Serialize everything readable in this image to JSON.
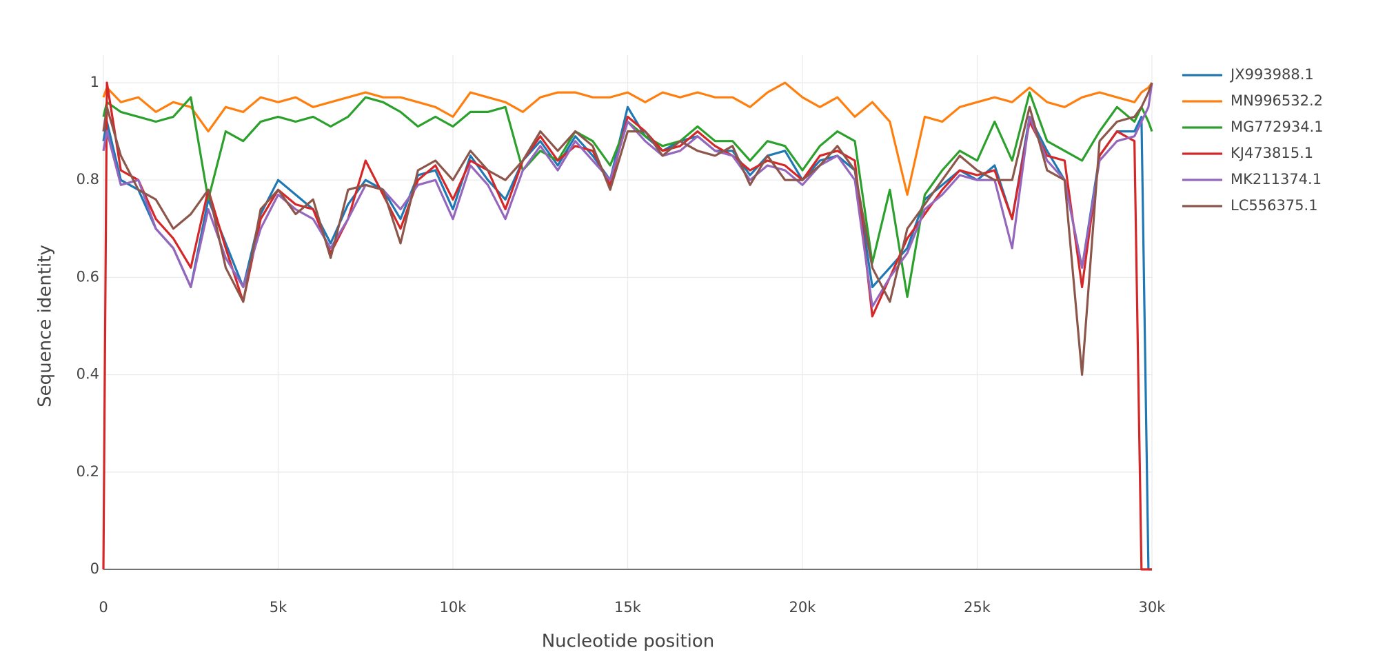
{
  "chart_data": {
    "type": "line",
    "xlabel": "Nucleotide position",
    "ylabel": "Sequence identity",
    "x": [
      0,
      100,
      500,
      1000,
      1500,
      2000,
      2500,
      3000,
      3500,
      4000,
      4500,
      5000,
      5500,
      6000,
      6500,
      7000,
      7500,
      8000,
      8500,
      9000,
      9500,
      10000,
      10500,
      11000,
      11500,
      12000,
      12500,
      13000,
      13500,
      14000,
      14500,
      15000,
      15500,
      16000,
      16500,
      17000,
      17500,
      18000,
      18500,
      19000,
      19500,
      20000,
      20500,
      21000,
      21500,
      22000,
      22500,
      23000,
      23500,
      24000,
      24500,
      25000,
      25500,
      26000,
      26500,
      27000,
      27500,
      28000,
      28500,
      29000,
      29500,
      29700,
      29900,
      30000
    ],
    "series": [
      {
        "name": "JX993988.1",
        "color": "#1f77b4",
        "values": [
          0.88,
          0.92,
          0.8,
          0.78,
          0.7,
          0.66,
          0.58,
          0.76,
          0.67,
          0.58,
          0.73,
          0.8,
          0.77,
          0.74,
          0.67,
          0.75,
          0.8,
          0.78,
          0.72,
          0.81,
          0.82,
          0.74,
          0.85,
          0.8,
          0.76,
          0.84,
          0.88,
          0.83,
          0.89,
          0.85,
          0.8,
          0.95,
          0.89,
          0.86,
          0.88,
          0.89,
          0.86,
          0.86,
          0.81,
          0.85,
          0.86,
          0.8,
          0.84,
          0.85,
          0.82,
          0.58,
          0.62,
          0.66,
          0.76,
          0.79,
          0.82,
          0.8,
          0.83,
          0.72,
          0.93,
          0.86,
          0.8,
          0.62,
          0.85,
          0.9,
          0.9,
          0.93,
          0,
          0
        ]
      },
      {
        "name": "MN996532.2",
        "color": "#ff7f0e",
        "values": [
          0.97,
          0.99,
          0.96,
          0.97,
          0.94,
          0.96,
          0.95,
          0.9,
          0.95,
          0.94,
          0.97,
          0.96,
          0.97,
          0.95,
          0.96,
          0.97,
          0.98,
          0.97,
          0.97,
          0.96,
          0.95,
          0.93,
          0.98,
          0.97,
          0.96,
          0.94,
          0.97,
          0.98,
          0.98,
          0.97,
          0.97,
          0.98,
          0.96,
          0.98,
          0.97,
          0.98,
          0.97,
          0.97,
          0.95,
          0.98,
          1.0,
          0.97,
          0.95,
          0.97,
          0.93,
          0.96,
          0.92,
          0.77,
          0.93,
          0.92,
          0.95,
          0.96,
          0.97,
          0.96,
          0.99,
          0.96,
          0.95,
          0.97,
          0.98,
          0.97,
          0.96,
          0.98,
          0.99,
          1.0
        ]
      },
      {
        "name": "MG772934.1",
        "color": "#2ca02c",
        "values": [
          0.93,
          0.96,
          0.94,
          0.93,
          0.92,
          0.93,
          0.97,
          0.76,
          0.9,
          0.88,
          0.92,
          0.93,
          0.92,
          0.93,
          0.91,
          0.93,
          0.97,
          0.96,
          0.94,
          0.91,
          0.93,
          0.91,
          0.94,
          0.94,
          0.95,
          0.82,
          0.86,
          0.84,
          0.9,
          0.88,
          0.83,
          0.92,
          0.89,
          0.87,
          0.88,
          0.91,
          0.88,
          0.88,
          0.84,
          0.88,
          0.87,
          0.82,
          0.87,
          0.9,
          0.88,
          0.63,
          0.78,
          0.56,
          0.77,
          0.82,
          0.86,
          0.84,
          0.92,
          0.84,
          0.98,
          0.88,
          0.86,
          0.84,
          0.9,
          0.95,
          0.92,
          0.95,
          0.92,
          0.9
        ]
      },
      {
        "name": "KJ473815.1",
        "color": "#d62728",
        "values": [
          0,
          1.0,
          0.82,
          0.8,
          0.72,
          0.68,
          0.62,
          0.78,
          0.66,
          0.55,
          0.72,
          0.78,
          0.75,
          0.74,
          0.65,
          0.72,
          0.84,
          0.77,
          0.7,
          0.8,
          0.83,
          0.76,
          0.84,
          0.82,
          0.74,
          0.84,
          0.89,
          0.84,
          0.87,
          0.86,
          0.79,
          0.93,
          0.9,
          0.86,
          0.87,
          0.9,
          0.87,
          0.85,
          0.82,
          0.84,
          0.83,
          0.8,
          0.85,
          0.86,
          0.84,
          0.52,
          0.6,
          0.68,
          0.73,
          0.78,
          0.82,
          0.81,
          0.82,
          0.72,
          0.92,
          0.85,
          0.84,
          0.58,
          0.85,
          0.9,
          0.88,
          0,
          0,
          0
        ]
      },
      {
        "name": "MK211374.1",
        "color": "#9467bd",
        "values": [
          0.86,
          0.9,
          0.79,
          0.8,
          0.7,
          0.66,
          0.58,
          0.74,
          0.64,
          0.58,
          0.7,
          0.77,
          0.74,
          0.72,
          0.66,
          0.72,
          0.79,
          0.78,
          0.74,
          0.79,
          0.8,
          0.72,
          0.83,
          0.79,
          0.72,
          0.82,
          0.87,
          0.82,
          0.88,
          0.84,
          0.8,
          0.92,
          0.88,
          0.85,
          0.86,
          0.89,
          0.86,
          0.85,
          0.8,
          0.83,
          0.82,
          0.79,
          0.83,
          0.85,
          0.8,
          0.54,
          0.6,
          0.65,
          0.74,
          0.77,
          0.81,
          0.8,
          0.8,
          0.66,
          0.93,
          0.84,
          0.8,
          0.62,
          0.84,
          0.88,
          0.89,
          0.92,
          0.95,
          1.0
        ]
      },
      {
        "name": "LC556375.1",
        "color": "#8c564b",
        "values": [
          0.9,
          0.95,
          0.85,
          0.78,
          0.76,
          0.7,
          0.73,
          0.78,
          0.62,
          0.55,
          0.74,
          0.78,
          0.73,
          0.76,
          0.64,
          0.78,
          0.79,
          0.78,
          0.67,
          0.82,
          0.84,
          0.8,
          0.86,
          0.82,
          0.8,
          0.84,
          0.9,
          0.86,
          0.9,
          0.87,
          0.78,
          0.9,
          0.9,
          0.85,
          0.88,
          0.86,
          0.85,
          0.87,
          0.79,
          0.85,
          0.8,
          0.8,
          0.83,
          0.87,
          0.82,
          0.62,
          0.55,
          0.7,
          0.75,
          0.8,
          0.85,
          0.82,
          0.8,
          0.8,
          0.95,
          0.82,
          0.8,
          0.4,
          0.88,
          0.92,
          0.93,
          0.95,
          0.98,
          1.0
        ]
      }
    ],
    "xlim": [
      0,
      30000
    ],
    "xticks": [
      0,
      {
        "value": 5000,
        "label": "5k"
      },
      {
        "value": 10000,
        "label": "10k"
      },
      {
        "value": 15000,
        "label": "15k"
      },
      {
        "value": 20000,
        "label": "20k"
      },
      {
        "value": 25000,
        "label": "25k"
      },
      {
        "value": 30000,
        "label": "30k"
      }
    ],
    "ylim": [
      0,
      1
    ],
    "yticks": [
      0,
      0.2,
      0.4,
      0.6,
      0.8,
      1
    ],
    "grid": true,
    "legend": "right"
  }
}
